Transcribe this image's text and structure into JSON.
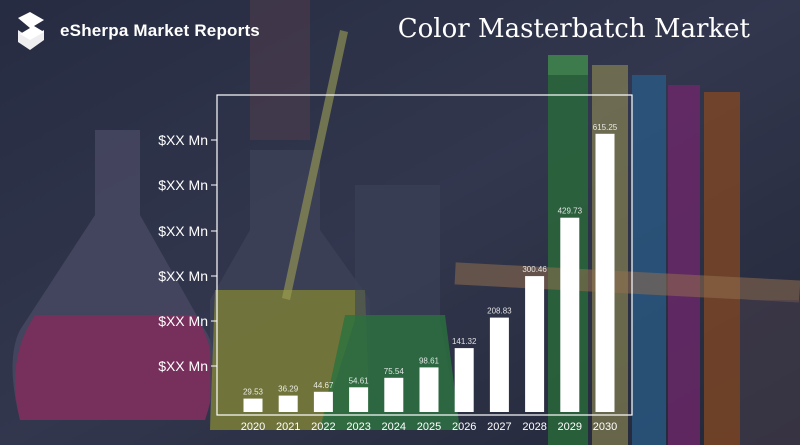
{
  "brand": {
    "name": "eSherpa Market Reports"
  },
  "chart_data": {
    "type": "bar",
    "title": "Color Masterbatch Market",
    "categories": [
      "2020",
      "2021",
      "2022",
      "2023",
      "2024",
      "2025",
      "2026",
      "2027",
      "2028",
      "2029",
      "2030"
    ],
    "values": [
      29.53,
      36.29,
      44.67,
      54.61,
      75.54,
      98.61,
      141.32,
      208.83,
      300.46,
      429.73,
      615.25
    ],
    "data_labels": [
      "29.53",
      "36.29",
      "44.67",
      "54.61",
      "75.54",
      "98.61",
      "141.32",
      "208.83",
      "300.46",
      "429.73",
      "615.25"
    ],
    "y_tick_labels": [
      "$XX Mn",
      "$XX Mn",
      "$XX Mn",
      "$XX Mn",
      "$XX Mn",
      "$XX Mn"
    ],
    "ylim": [
      0,
      690
    ],
    "xlabel": "",
    "ylabel": "",
    "grid": false,
    "bar_color": "#ffffff"
  }
}
